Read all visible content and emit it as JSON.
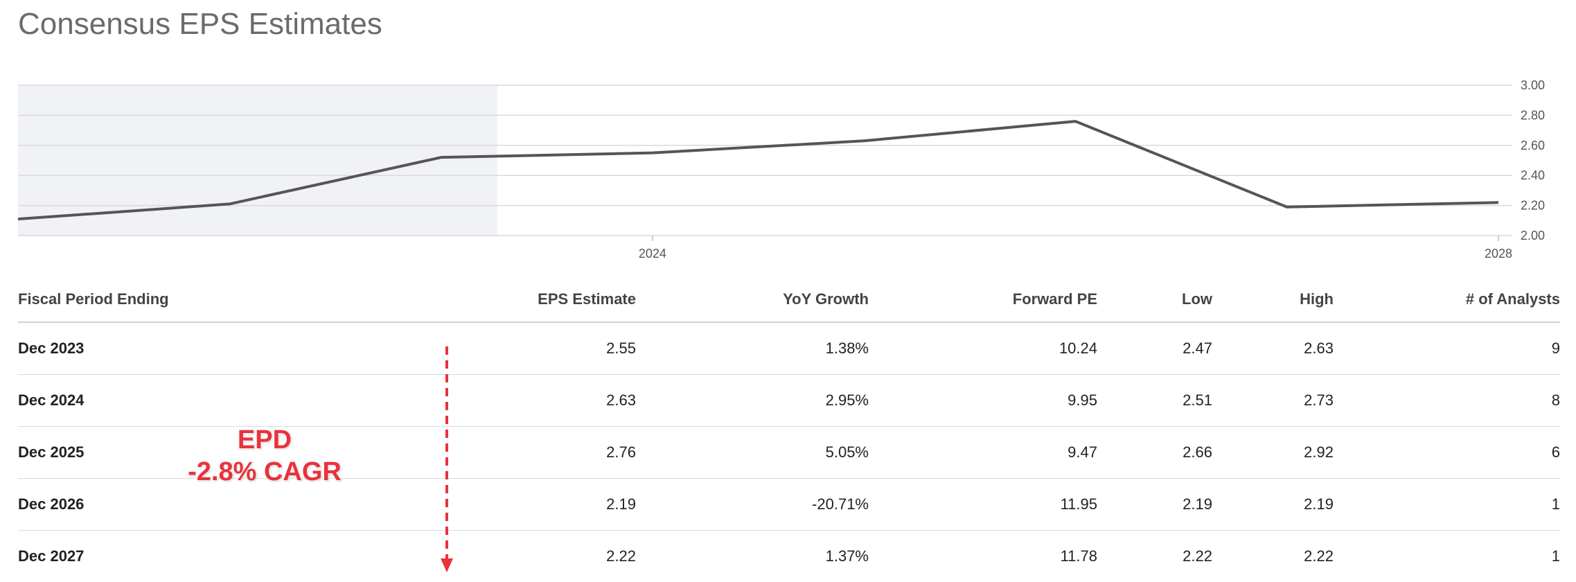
{
  "title": "Consensus EPS Estimates",
  "chart_data": {
    "type": "line",
    "x": [
      "2021",
      "2022",
      "2023",
      "2024",
      "2025",
      "2026",
      "2027",
      "2028"
    ],
    "values": [
      2.11,
      2.21,
      2.52,
      2.55,
      2.63,
      2.76,
      2.19,
      2.22
    ],
    "x_tick_labels": [
      "2024",
      "2028"
    ],
    "y_tick_labels": [
      "3.00",
      "2.80",
      "2.60",
      "2.40",
      "2.20",
      "2.00"
    ],
    "ylim": [
      2.0,
      3.0
    ],
    "historical_shaded_until": "2023",
    "grid": true,
    "line_color": "#555555",
    "shade_color": "#f1f2f6"
  },
  "table": {
    "headers": [
      "Fiscal Period Ending",
      "EPS Estimate",
      "YoY Growth",
      "Forward PE",
      "Low",
      "High",
      "# of Analysts"
    ],
    "rows": [
      [
        "Dec 2023",
        "2.55",
        "1.38%",
        "10.24",
        "2.47",
        "2.63",
        "9"
      ],
      [
        "Dec 2024",
        "2.63",
        "2.95%",
        "9.95",
        "2.51",
        "2.73",
        "8"
      ],
      [
        "Dec 2025",
        "2.76",
        "5.05%",
        "9.47",
        "2.66",
        "2.92",
        "6"
      ],
      [
        "Dec 2026",
        "2.19",
        "-20.71%",
        "11.95",
        "2.19",
        "2.19",
        "1"
      ],
      [
        "Dec 2027",
        "2.22",
        "1.37%",
        "11.78",
        "2.22",
        "2.22",
        "1"
      ]
    ]
  },
  "annotation": {
    "line1": "EPD",
    "line2": "-2.8% CAGR",
    "color": "#e8323c"
  }
}
